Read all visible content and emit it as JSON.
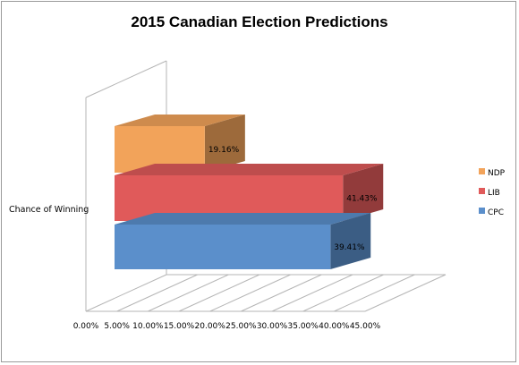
{
  "chart_data": {
    "type": "bar",
    "orientation": "horizontal",
    "style": "3d",
    "title": "2015 Canadian Election Predictions",
    "categories": [
      "Chance of Winning"
    ],
    "series": [
      {
        "name": "CPC",
        "values": [
          39.41
        ],
        "label": "39.41%",
        "color": "#5b8fcb"
      },
      {
        "name": "LIB",
        "values": [
          41.43
        ],
        "label": "41.43%",
        "color": "#e05a5a"
      },
      {
        "name": "NDP",
        "values": [
          19.16
        ],
        "label": "19.16%",
        "color": "#f2a35a"
      }
    ],
    "xlim": [
      0,
      45
    ],
    "xticks": [
      "0.00%",
      "5.00%",
      "10.00%",
      "15.00%",
      "20.00%",
      "25.00%",
      "30.00%",
      "35.00%",
      "40.00%",
      "45.00%"
    ],
    "grid": true,
    "legend_position": "right",
    "legend_order": [
      "NDP",
      "LIB",
      "CPC"
    ]
  }
}
